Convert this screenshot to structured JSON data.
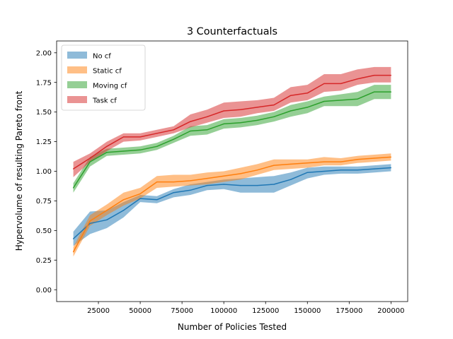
{
  "chart_data": {
    "type": "line",
    "title": "3 Counterfactuals",
    "xlabel": "Number of Policies Tested",
    "ylabel": "Hypervolume of resulting Pareto front",
    "xlim": [
      0,
      210000
    ],
    "ylim": [
      -0.1,
      2.1
    ],
    "xticks": [
      25000,
      50000,
      75000,
      100000,
      125000,
      150000,
      175000,
      200000
    ],
    "xtick_labels": [
      "25000",
      "50000",
      "75000",
      "100000",
      "125000",
      "150000",
      "175000",
      "200000"
    ],
    "yticks": [
      0.0,
      0.25,
      0.5,
      0.75,
      1.0,
      1.25,
      1.5,
      1.75,
      2.0
    ],
    "ytick_labels": [
      "0.00",
      "0.25",
      "0.50",
      "0.75",
      "1.00",
      "1.25",
      "1.50",
      "1.75",
      "2.00"
    ],
    "grid": false,
    "legend_position": "top-left",
    "x": [
      10000,
      20000,
      30000,
      40000,
      50000,
      60000,
      70000,
      80000,
      90000,
      100000,
      110000,
      120000,
      130000,
      140000,
      150000,
      160000,
      170000,
      180000,
      190000,
      200000
    ],
    "series": [
      {
        "name": "No cf",
        "color": "#1f77b4",
        "values": [
          0.43,
          0.56,
          0.59,
          0.67,
          0.77,
          0.76,
          0.82,
          0.84,
          0.88,
          0.89,
          0.88,
          0.88,
          0.89,
          0.93,
          0.99,
          1.0,
          1.01,
          1.01,
          1.02,
          1.03
        ],
        "lower": [
          0.37,
          0.47,
          0.52,
          0.61,
          0.74,
          0.73,
          0.78,
          0.8,
          0.84,
          0.85,
          0.82,
          0.82,
          0.82,
          0.88,
          0.94,
          0.97,
          0.98,
          0.98,
          0.99,
          1.0
        ],
        "upper": [
          0.49,
          0.66,
          0.67,
          0.74,
          0.8,
          0.79,
          0.85,
          0.89,
          0.91,
          0.93,
          0.94,
          0.95,
          0.96,
          0.99,
          1.03,
          1.04,
          1.04,
          1.04,
          1.05,
          1.06
        ]
      },
      {
        "name": "Static cf",
        "color": "#ff7f0e",
        "values": [
          0.32,
          0.58,
          0.67,
          0.76,
          0.81,
          0.91,
          0.91,
          0.92,
          0.94,
          0.96,
          0.98,
          1.01,
          1.05,
          1.06,
          1.07,
          1.08,
          1.08,
          1.1,
          1.11,
          1.12
        ],
        "lower": [
          0.28,
          0.54,
          0.63,
          0.71,
          0.77,
          0.86,
          0.87,
          0.88,
          0.89,
          0.91,
          0.93,
          0.97,
          1.01,
          1.02,
          1.03,
          1.05,
          1.05,
          1.07,
          1.08,
          1.09
        ],
        "upper": [
          0.36,
          0.63,
          0.72,
          0.82,
          0.86,
          0.96,
          0.97,
          0.97,
          0.99,
          1.0,
          1.03,
          1.06,
          1.1,
          1.1,
          1.1,
          1.12,
          1.11,
          1.13,
          1.14,
          1.15
        ]
      },
      {
        "name": "Moving cf",
        "color": "#2ca02c",
        "values": [
          0.86,
          1.08,
          1.16,
          1.17,
          1.18,
          1.21,
          1.27,
          1.34,
          1.35,
          1.4,
          1.41,
          1.43,
          1.46,
          1.51,
          1.54,
          1.59,
          1.6,
          1.61,
          1.67,
          1.67
        ],
        "lower": [
          0.82,
          1.04,
          1.13,
          1.14,
          1.15,
          1.18,
          1.24,
          1.3,
          1.31,
          1.36,
          1.37,
          1.39,
          1.42,
          1.46,
          1.49,
          1.55,
          1.55,
          1.55,
          1.61,
          1.61
        ],
        "upper": [
          0.9,
          1.12,
          1.19,
          1.2,
          1.21,
          1.24,
          1.3,
          1.38,
          1.39,
          1.44,
          1.45,
          1.47,
          1.5,
          1.56,
          1.59,
          1.63,
          1.65,
          1.67,
          1.73,
          1.73
        ]
      },
      {
        "name": "Task cf",
        "color": "#d62728",
        "values": [
          1.02,
          1.11,
          1.21,
          1.29,
          1.29,
          1.32,
          1.35,
          1.42,
          1.46,
          1.51,
          1.52,
          1.54,
          1.56,
          1.64,
          1.66,
          1.74,
          1.74,
          1.78,
          1.81,
          1.81
        ],
        "lower": [
          0.95,
          1.08,
          1.17,
          1.25,
          1.26,
          1.29,
          1.32,
          1.37,
          1.41,
          1.45,
          1.46,
          1.49,
          1.51,
          1.58,
          1.6,
          1.67,
          1.68,
          1.73,
          1.75,
          1.75
        ],
        "upper": [
          1.08,
          1.15,
          1.25,
          1.32,
          1.32,
          1.35,
          1.38,
          1.48,
          1.52,
          1.58,
          1.59,
          1.6,
          1.62,
          1.71,
          1.73,
          1.82,
          1.82,
          1.86,
          1.88,
          1.88
        ]
      }
    ]
  }
}
